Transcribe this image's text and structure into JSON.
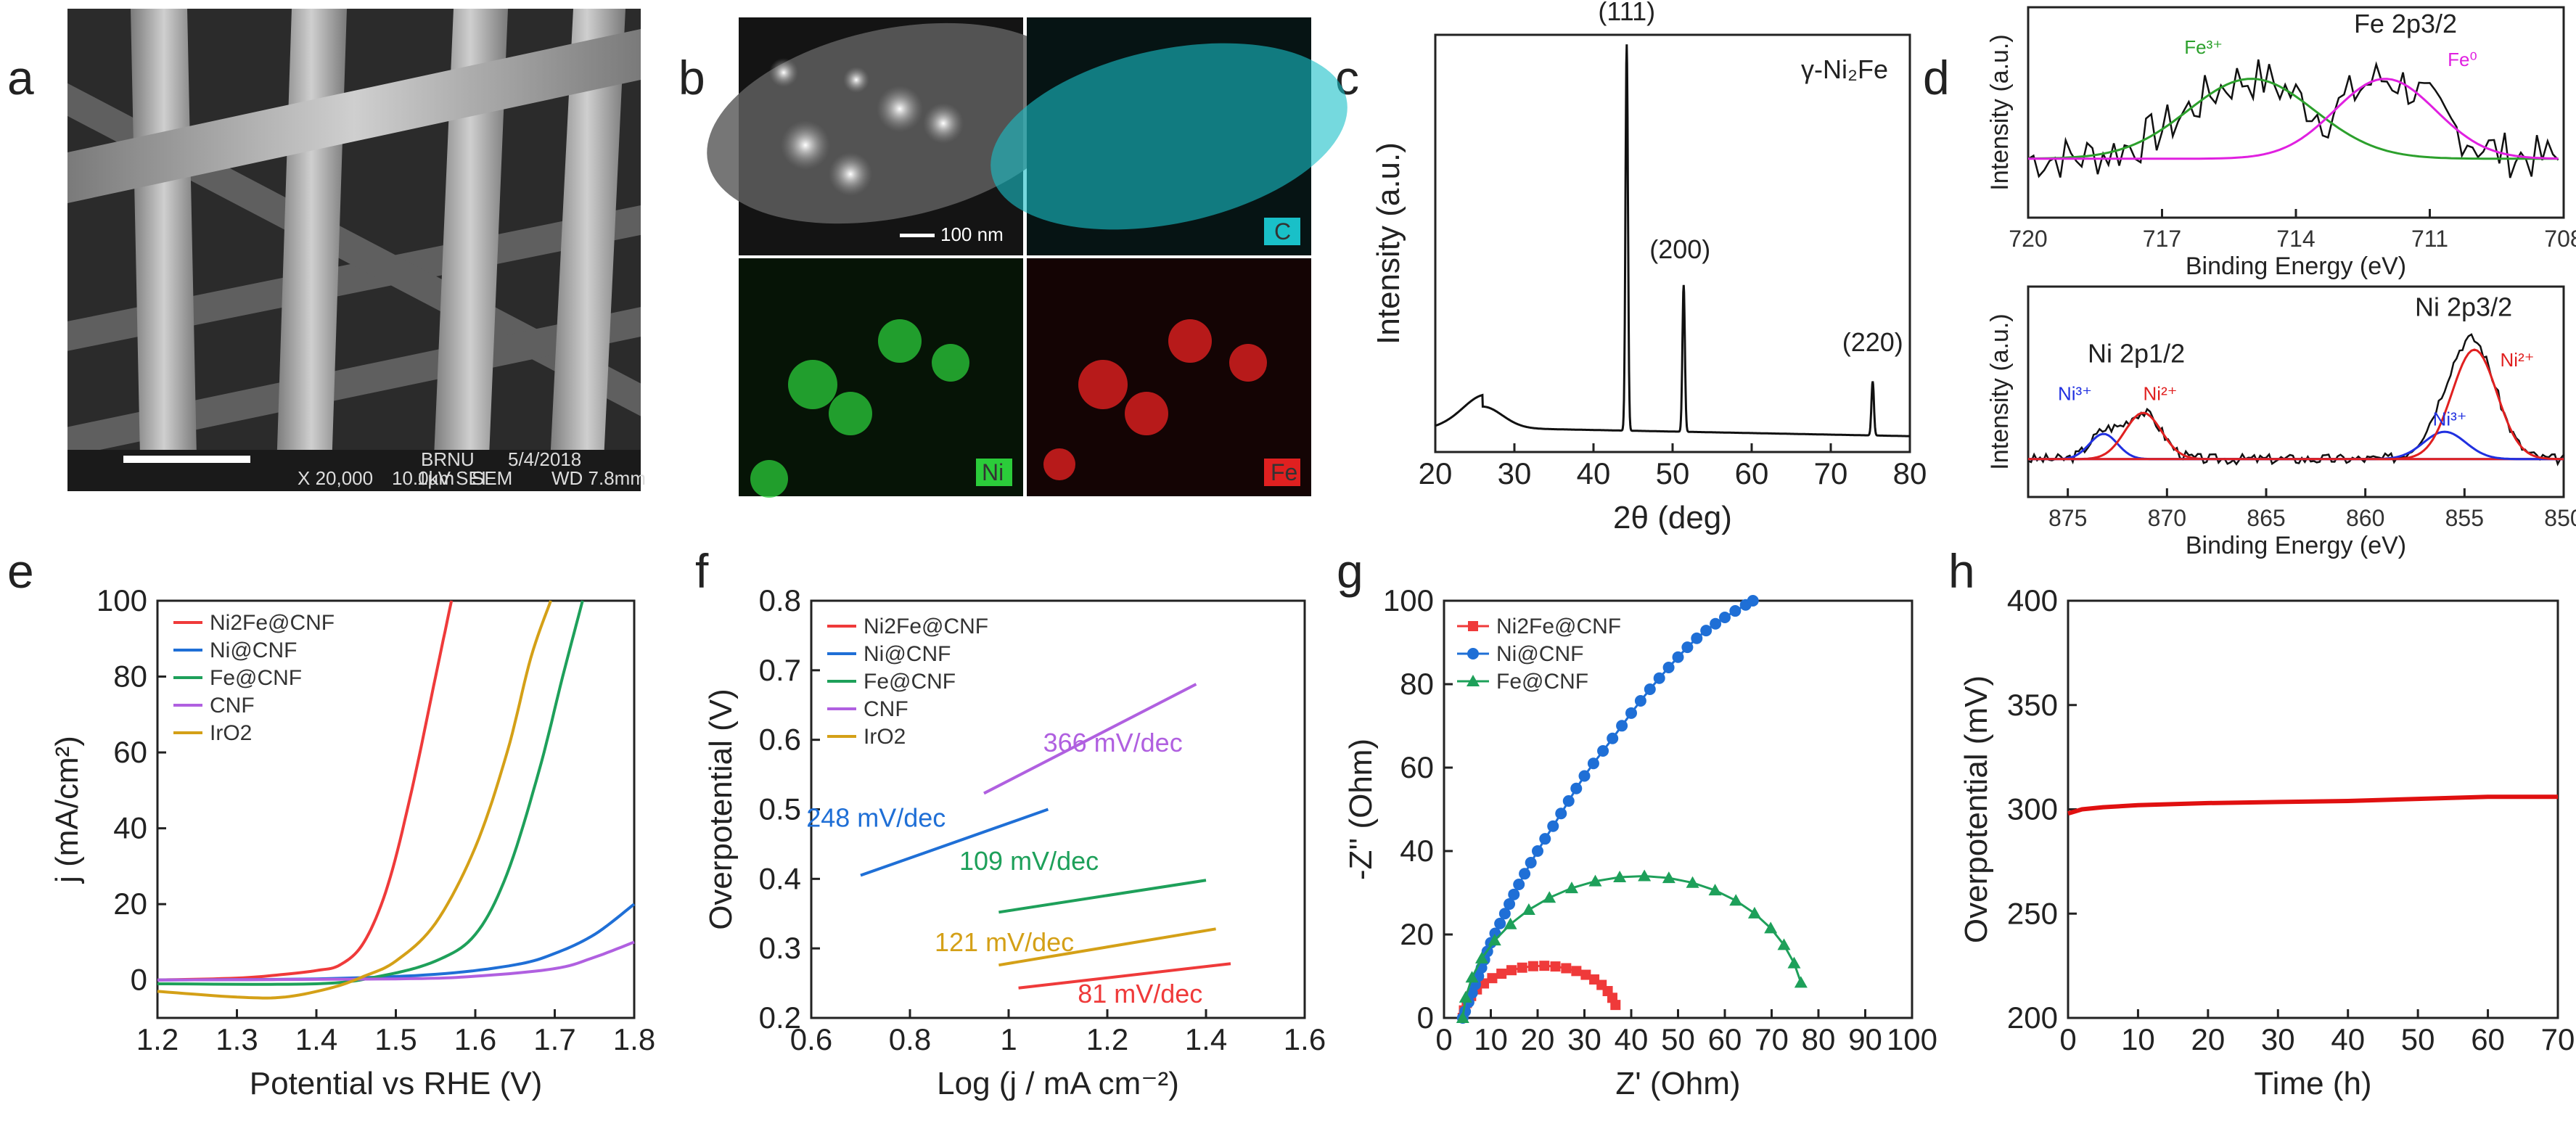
{
  "panels": {
    "a": "a",
    "b": "b",
    "c": "c",
    "d": "d",
    "e": "e",
    "f": "f",
    "g": "g",
    "h": "h"
  },
  "sem": {
    "databar": [
      "X 20,000",
      "10.0kV SEI",
      "SEM",
      "WD 7.8mm"
    ],
    "scale_label": "1µm",
    "org": "BRNU",
    "date": "5/4/2018"
  },
  "tem": {
    "scale": "100 nm",
    "labels": [
      "C",
      "Ni",
      "Fe"
    ],
    "colors": {
      "C": "#19c0c8",
      "Ni": "#2bcc3a",
      "Fe": "#e02020"
    }
  },
  "chart_data": [
    {
      "panel": "c",
      "type": "line",
      "title": "γ-Ni₂Fe",
      "xlabel": "2θ (deg)",
      "ylabel": "Intensity (a.u.)",
      "xlim": [
        20,
        80
      ],
      "xticks": [
        20,
        30,
        40,
        50,
        60,
        70,
        80
      ],
      "peaks": [
        {
          "x": 44.2,
          "height": 1.0,
          "label": "(111)"
        },
        {
          "x": 51.4,
          "height": 0.38,
          "label": "(200)"
        },
        {
          "x": 75.3,
          "height": 0.14,
          "label": "(220)"
        }
      ],
      "broad_hump": {
        "x": 26,
        "height": 0.05
      },
      "color": "#111111"
    },
    {
      "panel": "d-top",
      "type": "line",
      "title": "Fe 2p3/2",
      "xlabel": "Binding Energy (eV)",
      "ylabel": "Intensity (a.u.)",
      "xlim": [
        720,
        708
      ],
      "xticks": [
        720,
        717,
        714,
        711,
        708
      ],
      "series": [
        {
          "name": "Fe³⁺",
          "center": 715.0,
          "color": "#2ca02c"
        },
        {
          "name": "Fe⁰",
          "center": 712.0,
          "color": "#e020e0"
        }
      ]
    },
    {
      "panel": "d-bottom",
      "type": "line",
      "title": "Ni 2p3/2",
      "subtitle": "Ni 2p1/2",
      "xlabel": "Binding Energy (eV)",
      "ylabel": "Intensity (a.u.)",
      "xlim": [
        877,
        850
      ],
      "xticks": [
        875,
        870,
        865,
        860,
        855,
        850
      ],
      "series": [
        {
          "name": "Ni³⁺",
          "center": 873.2,
          "color": "#2030e0"
        },
        {
          "name": "Ni²⁺",
          "center": 871.2,
          "color": "#e02020"
        },
        {
          "name": "Ni³⁺",
          "center": 856.0,
          "color": "#2030e0"
        },
        {
          "name": "Ni²⁺",
          "center": 854.5,
          "color": "#e02020"
        }
      ]
    },
    {
      "panel": "e",
      "type": "line",
      "xlabel": "Potential vs RHE (V)",
      "ylabel": "j (mA/cm²)",
      "xlim": [
        1.2,
        1.8
      ],
      "ylim": [
        -10,
        100
      ],
      "xticks": [
        1.2,
        1.3,
        1.4,
        1.5,
        1.6,
        1.7,
        1.8
      ],
      "yticks": [
        0,
        20,
        40,
        60,
        80,
        100
      ],
      "series": [
        {
          "name": "Ni2Fe@CNF",
          "color": "#ef3a3a",
          "x": [
            1.2,
            1.3,
            1.36,
            1.4,
            1.43,
            1.46,
            1.49,
            1.52,
            1.55,
            1.57
          ],
          "y": [
            0,
            0.5,
            1.5,
            2.5,
            4,
            10,
            25,
            50,
            80,
            100
          ]
        },
        {
          "name": "Ni@CNF",
          "color": "#1f6fd6",
          "x": [
            1.2,
            1.4,
            1.55,
            1.65,
            1.7,
            1.75,
            1.8
          ],
          "y": [
            0,
            0.3,
            1.5,
            4,
            7,
            12,
            20
          ]
        },
        {
          "name": "Fe@CNF",
          "color": "#1ea05a",
          "x": [
            1.2,
            1.4,
            1.48,
            1.55,
            1.6,
            1.64,
            1.68,
            1.71,
            1.735
          ],
          "y": [
            -1,
            -1,
            1,
            5,
            12,
            28,
            55,
            80,
            100
          ]
        },
        {
          "name": "CNF",
          "color": "#b060e0",
          "x": [
            1.2,
            1.5,
            1.6,
            1.7,
            1.75,
            1.8
          ],
          "y": [
            0,
            0.3,
            1,
            3,
            6,
            10
          ]
        },
        {
          "name": "IrO2",
          "color": "#d4a017",
          "x": [
            1.2,
            1.3,
            1.36,
            1.42,
            1.46,
            1.5,
            1.55,
            1.6,
            1.64,
            1.67,
            1.695
          ],
          "y": [
            -3,
            -4.5,
            -4.5,
            -2,
            1,
            5,
            15,
            35,
            60,
            85,
            100
          ]
        }
      ]
    },
    {
      "panel": "f",
      "type": "line",
      "xlabel": "Log (j / mA cm⁻²)",
      "ylabel": "Overpotential (V)",
      "xlim": [
        0.6,
        1.6
      ],
      "ylim": [
        0.2,
        0.8
      ],
      "xticks": [
        0.6,
        0.8,
        1.0,
        1.2,
        1.4,
        1.6
      ],
      "yticks": [
        0.2,
        0.3,
        0.4,
        0.5,
        0.6,
        0.7,
        0.8
      ],
      "series": [
        {
          "name": "Ni2Fe@CNF",
          "color": "#ef3a3a",
          "x": [
            1.02,
            1.45
          ],
          "y": [
            0.243,
            0.278
          ],
          "slope_label": "81 mV/dec"
        },
        {
          "name": "Ni@CNF",
          "color": "#1f6fd6",
          "x": [
            0.7,
            1.08
          ],
          "y": [
            0.405,
            0.5
          ],
          "slope_label": "248 mV/dec"
        },
        {
          "name": "Fe@CNF",
          "color": "#1ea05a",
          "x": [
            0.98,
            1.4
          ],
          "y": [
            0.352,
            0.398
          ],
          "slope_label": "109 mV/dec"
        },
        {
          "name": "CNF",
          "color": "#b060e0",
          "x": [
            0.95,
            1.38
          ],
          "y": [
            0.523,
            0.68
          ],
          "slope_label": "366 mV/dec"
        },
        {
          "name": "IrO2",
          "color": "#d4a017",
          "x": [
            0.98,
            1.42
          ],
          "y": [
            0.276,
            0.328
          ],
          "slope_label": "121 mV/dec"
        }
      ]
    },
    {
      "panel": "g",
      "type": "scatter",
      "xlabel": "Z' (Ohm)",
      "ylabel": "-Z'' (Ohm)",
      "xlim": [
        0,
        100
      ],
      "ylim": [
        0,
        100
      ],
      "xticks": [
        0,
        10,
        20,
        30,
        40,
        50,
        60,
        70,
        80,
        90,
        100
      ],
      "yticks": [
        0,
        20,
        40,
        60,
        80,
        100
      ],
      "series": [
        {
          "name": "Ni2Fe@CNF",
          "color": "#ef3a3a",
          "marker": "square",
          "x0": 4,
          "x1": 37,
          "peak_x": 23,
          "peak_y": 12.5
        },
        {
          "name": "Ni@CNF",
          "color": "#1f6fd6",
          "marker": "circle",
          "x": [
            4,
            6,
            8,
            10,
            13,
            16,
            20,
            25,
            30,
            36,
            42,
            48,
            54,
            60,
            66
          ],
          "y": [
            0,
            6,
            12,
            18,
            25,
            32,
            40,
            49,
            58,
            67,
            76,
            84,
            91,
            96,
            100
          ]
        },
        {
          "name": "Fe@CNF",
          "color": "#1ea05a",
          "marker": "triangle",
          "x0": 4,
          "x1": 77,
          "peak_x": 47,
          "peak_y": 34
        }
      ]
    },
    {
      "panel": "h",
      "type": "line",
      "xlabel": "Time (h)",
      "ylabel": "Overpotential (mV)",
      "xlim": [
        0,
        70
      ],
      "ylim": [
        200,
        400
      ],
      "xticks": [
        0,
        10,
        20,
        30,
        40,
        50,
        60,
        70
      ],
      "yticks": [
        200,
        250,
        300,
        350,
        400
      ],
      "series": [
        {
          "name": "",
          "color": "#e01010",
          "x": [
            0,
            2,
            5,
            10,
            20,
            30,
            40,
            50,
            60,
            70
          ],
          "y": [
            298,
            300,
            301,
            302,
            303,
            303.5,
            304,
            305,
            306,
            306
          ]
        }
      ]
    }
  ],
  "legend_labels": {
    "e": [
      "Ni2Fe@CNF",
      "Ni@CNF",
      "Fe@CNF",
      "CNF",
      "IrO2"
    ],
    "f": [
      "Ni2Fe@CNF",
      "Ni@CNF",
      "Fe@CNF",
      "CNF",
      "IrO2"
    ],
    "g": [
      "Ni2Fe@CNF",
      "Ni@CNF",
      "Fe@CNF"
    ]
  }
}
